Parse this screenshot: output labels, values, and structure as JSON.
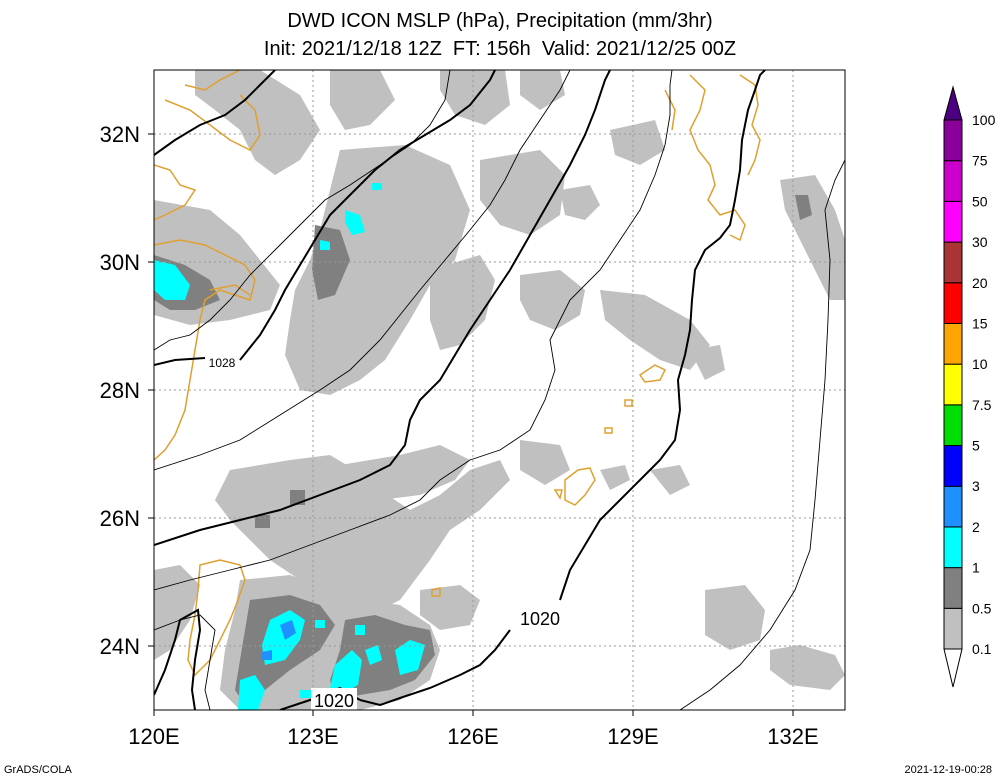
{
  "title": {
    "line1": "DWD ICON MSLP (hPa), Precipitation (mm/3hr)",
    "line2": "Init: 2021/12/18 12Z  FT: 156h  Valid: 2021/12/25 00Z"
  },
  "map": {
    "lon_range": [
      120,
      133
    ],
    "lat_range": [
      23,
      33
    ],
    "lon_ticks": [
      "120E",
      "123E",
      "126E",
      "129E",
      "132E"
    ],
    "lat_ticks": [
      "32N",
      "30N",
      "28N",
      "26N",
      "24N"
    ],
    "isobar_labels": [
      "1028",
      "1020",
      "1020"
    ],
    "coastline_color": "#e0a030",
    "gridline_style": "dotted"
  },
  "colorbar": {
    "labels": [
      "100",
      "75",
      "50",
      "30",
      "20",
      "15",
      "10",
      "7.5",
      "5",
      "3",
      "2",
      "1",
      "0.5",
      "0.1"
    ],
    "colors": [
      "#ffffff",
      "#c0c0c0",
      "#808080",
      "#00ffff",
      "#1e90ff",
      "#0000ff",
      "#00dd00",
      "#ffff00",
      "#ffa500",
      "#ff0000",
      "#aa3333",
      "#ff00ff",
      "#cc00cc",
      "#880099",
      "#4b0082"
    ]
  },
  "footer": {
    "left": "GrADS/COLA",
    "right": "2021-12-19-00:28"
  }
}
